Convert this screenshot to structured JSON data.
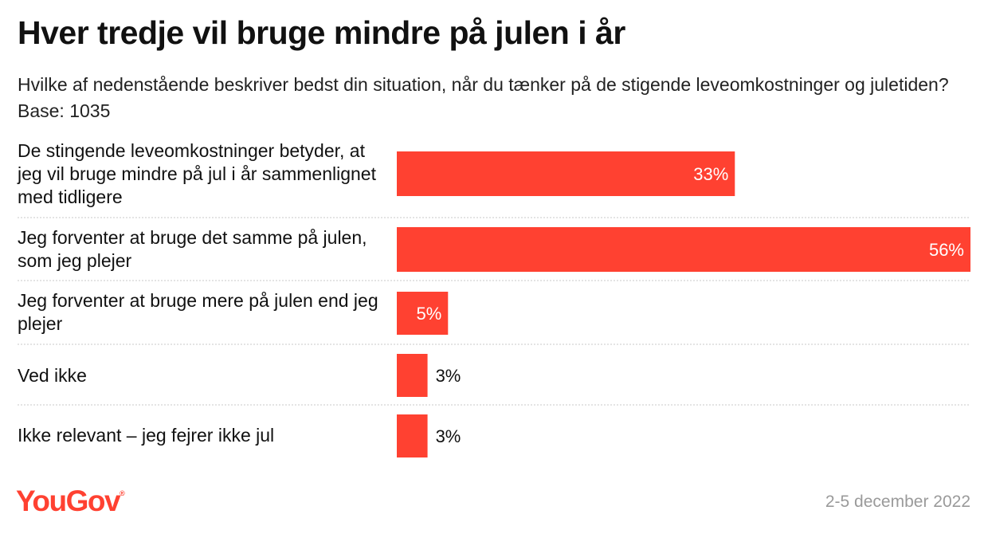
{
  "title": "Hver tredje vil bruge mindre på julen i år",
  "subtitle": "Hvilke af nedenstående beskriver bedst din situation, når du tænker på de stigende leveomkostninger og juletiden? Base: 1035",
  "footer": {
    "brand": "YouGov",
    "date": "2-5 december 2022"
  },
  "colors": {
    "bar": "#ff4131",
    "divider": "#c8c8c8",
    "label_inside": "#ffffff",
    "label_outside": "#111111"
  },
  "chart_data": {
    "type": "bar",
    "orientation": "horizontal",
    "categories": [
      "De stingende leveomkostninger betyder, at jeg vil bruge mindre på jul i år sammenlignet med tidligere",
      "Jeg forventer at bruge det samme på julen, som jeg plejer",
      "Jeg forventer at bruge mere på julen end jeg plejer",
      "Ved ikke",
      "Ikke relevant – jeg fejrer ikke jul"
    ],
    "values": [
      33,
      56,
      5,
      3,
      3
    ],
    "value_labels": [
      "33%",
      "56%",
      "5%",
      "3%",
      "3%"
    ],
    "unit": "%",
    "xlim": [
      0,
      56
    ],
    "grid": false,
    "legend": "none"
  }
}
